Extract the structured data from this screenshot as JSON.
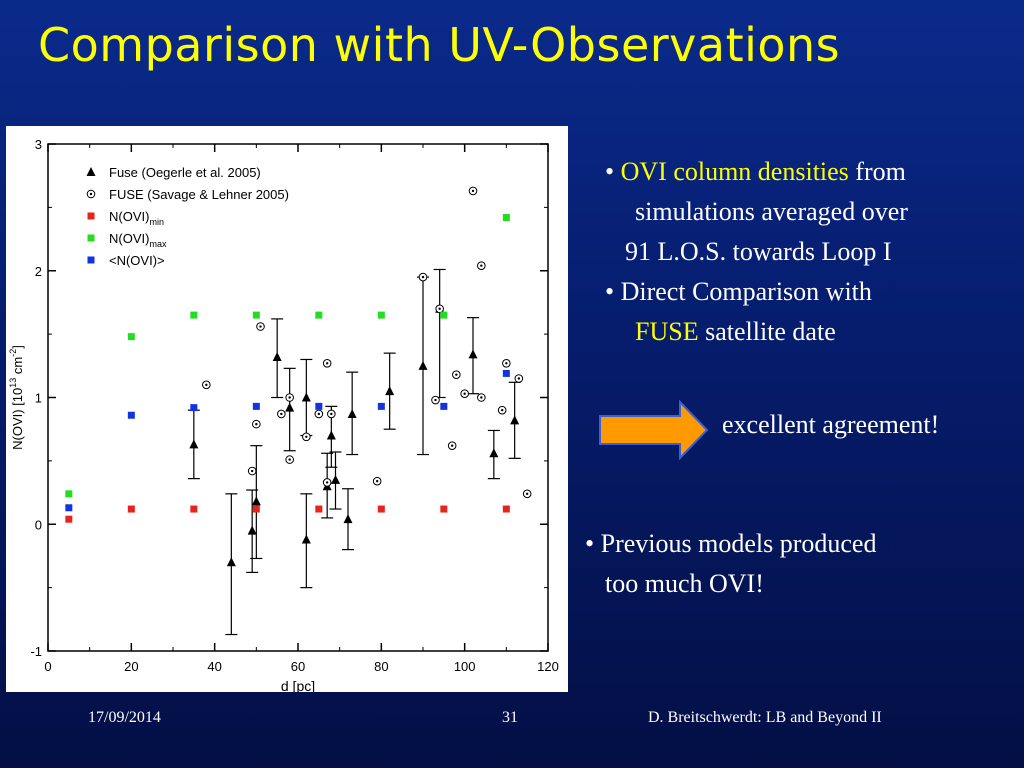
{
  "slide": {
    "title": "Comparison with UV-Observations",
    "bullets_top": [
      {
        "bullet": "• ",
        "highlight": "OVI column densities",
        "text": " from",
        "line2": "simulations averaged over",
        "line3": "91 L.O.S. towards Loop I"
      },
      {
        "bullet": "• ",
        "text": "Direct Comparison with",
        "highlight": "FUSE",
        "line2_rest": " satellite date"
      }
    ],
    "conclusion": "excellent agreement!",
    "bullet_bottom": {
      "line1": "• Previous models produced",
      "line2": "too much OVI!"
    },
    "footer": {
      "date": "17/09/2014",
      "page": "31",
      "author": "D. Breitschwerdt: LB and Beyond II"
    },
    "colors": {
      "background": "#061c6c",
      "title": "#ffff00",
      "arrow_fill": "#ff9900",
      "arrow_stroke": "#3a5fd9"
    }
  },
  "chart_data": {
    "type": "scatter",
    "xlabel": "d [pc]",
    "ylabel": "N(OVI) [10",
    "ylabel_sup1": "13",
    "ylabel_mid": " cm",
    "ylabel_sup2": "-2",
    "ylabel_end": "]",
    "xlim": [
      0,
      120
    ],
    "ylim": [
      -1,
      3
    ],
    "xticks": [
      0,
      20,
      40,
      60,
      80,
      100,
      120
    ],
    "yticks": [
      -1,
      0,
      1,
      2,
      3
    ],
    "grid": false,
    "legend_position": "top-left",
    "legend": [
      {
        "key": "fuse_oegerle",
        "label": "Fuse (Oegerle et al. 2005)",
        "marker": "triangle"
      },
      {
        "key": "fuse_savage",
        "label": "FUSE (Savage & Lehner 2005)",
        "marker": "circle-dot"
      },
      {
        "key": "ovi_min",
        "label": "N(OVI)",
        "sub": "min",
        "marker": "square",
        "color": "#e8231e"
      },
      {
        "key": "ovi_max",
        "label": "N(OVI)",
        "sub": "max",
        "marker": "square",
        "color": "#22dd22"
      },
      {
        "key": "ovi_mean",
        "label": "<N(OVI)>",
        "marker": "square",
        "color": "#1433e0"
      }
    ],
    "series": {
      "fuse_oegerle": [
        {
          "x": 35,
          "y": 0.63,
          "lo": 0.36,
          "hi": 0.9
        },
        {
          "x": 44,
          "y": -0.3,
          "lo": -0.87,
          "hi": 0.24
        },
        {
          "x": 49,
          "y": -0.05,
          "lo": -0.38,
          "hi": 0.27
        },
        {
          "x": 50,
          "y": 0.18,
          "lo": -0.27,
          "hi": 0.62
        },
        {
          "x": 55,
          "y": 1.32,
          "lo": 1.0,
          "hi": 1.62
        },
        {
          "x": 58,
          "y": 0.92,
          "lo": 0.58,
          "hi": 1.23
        },
        {
          "x": 62,
          "y": 1.0,
          "lo": 0.7,
          "hi": 1.3
        },
        {
          "x": 62,
          "y": -0.12,
          "lo": -0.5,
          "hi": 0.24
        },
        {
          "x": 67,
          "y": 0.3,
          "lo": 0.05,
          "hi": 0.56
        },
        {
          "x": 68,
          "y": 0.7,
          "lo": 0.45,
          "hi": 0.93
        },
        {
          "x": 69,
          "y": 0.35,
          "lo": 0.12,
          "hi": 0.57
        },
        {
          "x": 72,
          "y": 0.04,
          "lo": -0.2,
          "hi": 0.28
        },
        {
          "x": 73,
          "y": 0.87,
          "lo": 0.55,
          "hi": 1.2
        },
        {
          "x": 82,
          "y": 1.05,
          "lo": 0.75,
          "hi": 1.35
        },
        {
          "x": 90,
          "y": 1.25,
          "lo": 0.55,
          "hi": 1.95
        },
        {
          "x": 94,
          "y": 1.7,
          "lo": 1.0,
          "hi": 2.01
        },
        {
          "x": 102,
          "y": 1.34,
          "lo": 1.03,
          "hi": 1.63
        },
        {
          "x": 107,
          "y": 0.56,
          "lo": 0.36,
          "hi": 0.74
        },
        {
          "x": 112,
          "y": 0.82,
          "lo": 0.52,
          "hi": 1.12
        }
      ],
      "fuse_savage": [
        {
          "x": 38,
          "y": 1.1
        },
        {
          "x": 49,
          "y": 0.42
        },
        {
          "x": 50,
          "y": 0.79
        },
        {
          "x": 51,
          "y": 1.56
        },
        {
          "x": 56,
          "y": 0.87
        },
        {
          "x": 58,
          "y": 1.0
        },
        {
          "x": 58,
          "y": 0.51
        },
        {
          "x": 62,
          "y": 0.69
        },
        {
          "x": 65,
          "y": 0.87
        },
        {
          "x": 67,
          "y": 1.27
        },
        {
          "x": 67,
          "y": 0.33
        },
        {
          "x": 68,
          "y": 0.87
        },
        {
          "x": 79,
          "y": 0.34
        },
        {
          "x": 90,
          "y": 1.95
        },
        {
          "x": 93,
          "y": 0.98
        },
        {
          "x": 94,
          "y": 1.7
        },
        {
          "x": 97,
          "y": 0.62
        },
        {
          "x": 98,
          "y": 1.18
        },
        {
          "x": 100,
          "y": 1.03
        },
        {
          "x": 102,
          "y": 2.63
        },
        {
          "x": 104,
          "y": 2.04
        },
        {
          "x": 104,
          "y": 1.0
        },
        {
          "x": 109,
          "y": 0.9
        },
        {
          "x": 110,
          "y": 1.27
        },
        {
          "x": 113,
          "y": 1.15
        },
        {
          "x": 115,
          "y": 0.24
        }
      ],
      "ovi_min": [
        {
          "x": 5,
          "y": 0.04
        },
        {
          "x": 20,
          "y": 0.12
        },
        {
          "x": 35,
          "y": 0.12
        },
        {
          "x": 50,
          "y": 0.12
        },
        {
          "x": 65,
          "y": 0.12
        },
        {
          "x": 80,
          "y": 0.12
        },
        {
          "x": 95,
          "y": 0.12
        },
        {
          "x": 110,
          "y": 0.12
        }
      ],
      "ovi_max": [
        {
          "x": 5,
          "y": 0.24
        },
        {
          "x": 20,
          "y": 1.48
        },
        {
          "x": 35,
          "y": 1.65
        },
        {
          "x": 50,
          "y": 1.65
        },
        {
          "x": 65,
          "y": 1.65
        },
        {
          "x": 80,
          "y": 1.65
        },
        {
          "x": 95,
          "y": 1.65
        },
        {
          "x": 110,
          "y": 2.42
        }
      ],
      "ovi_mean": [
        {
          "x": 5,
          "y": 0.13
        },
        {
          "x": 20,
          "y": 0.86
        },
        {
          "x": 35,
          "y": 0.92
        },
        {
          "x": 50,
          "y": 0.93
        },
        {
          "x": 65,
          "y": 0.93
        },
        {
          "x": 80,
          "y": 0.93
        },
        {
          "x": 95,
          "y": 0.93
        },
        {
          "x": 110,
          "y": 1.19
        }
      ]
    }
  }
}
